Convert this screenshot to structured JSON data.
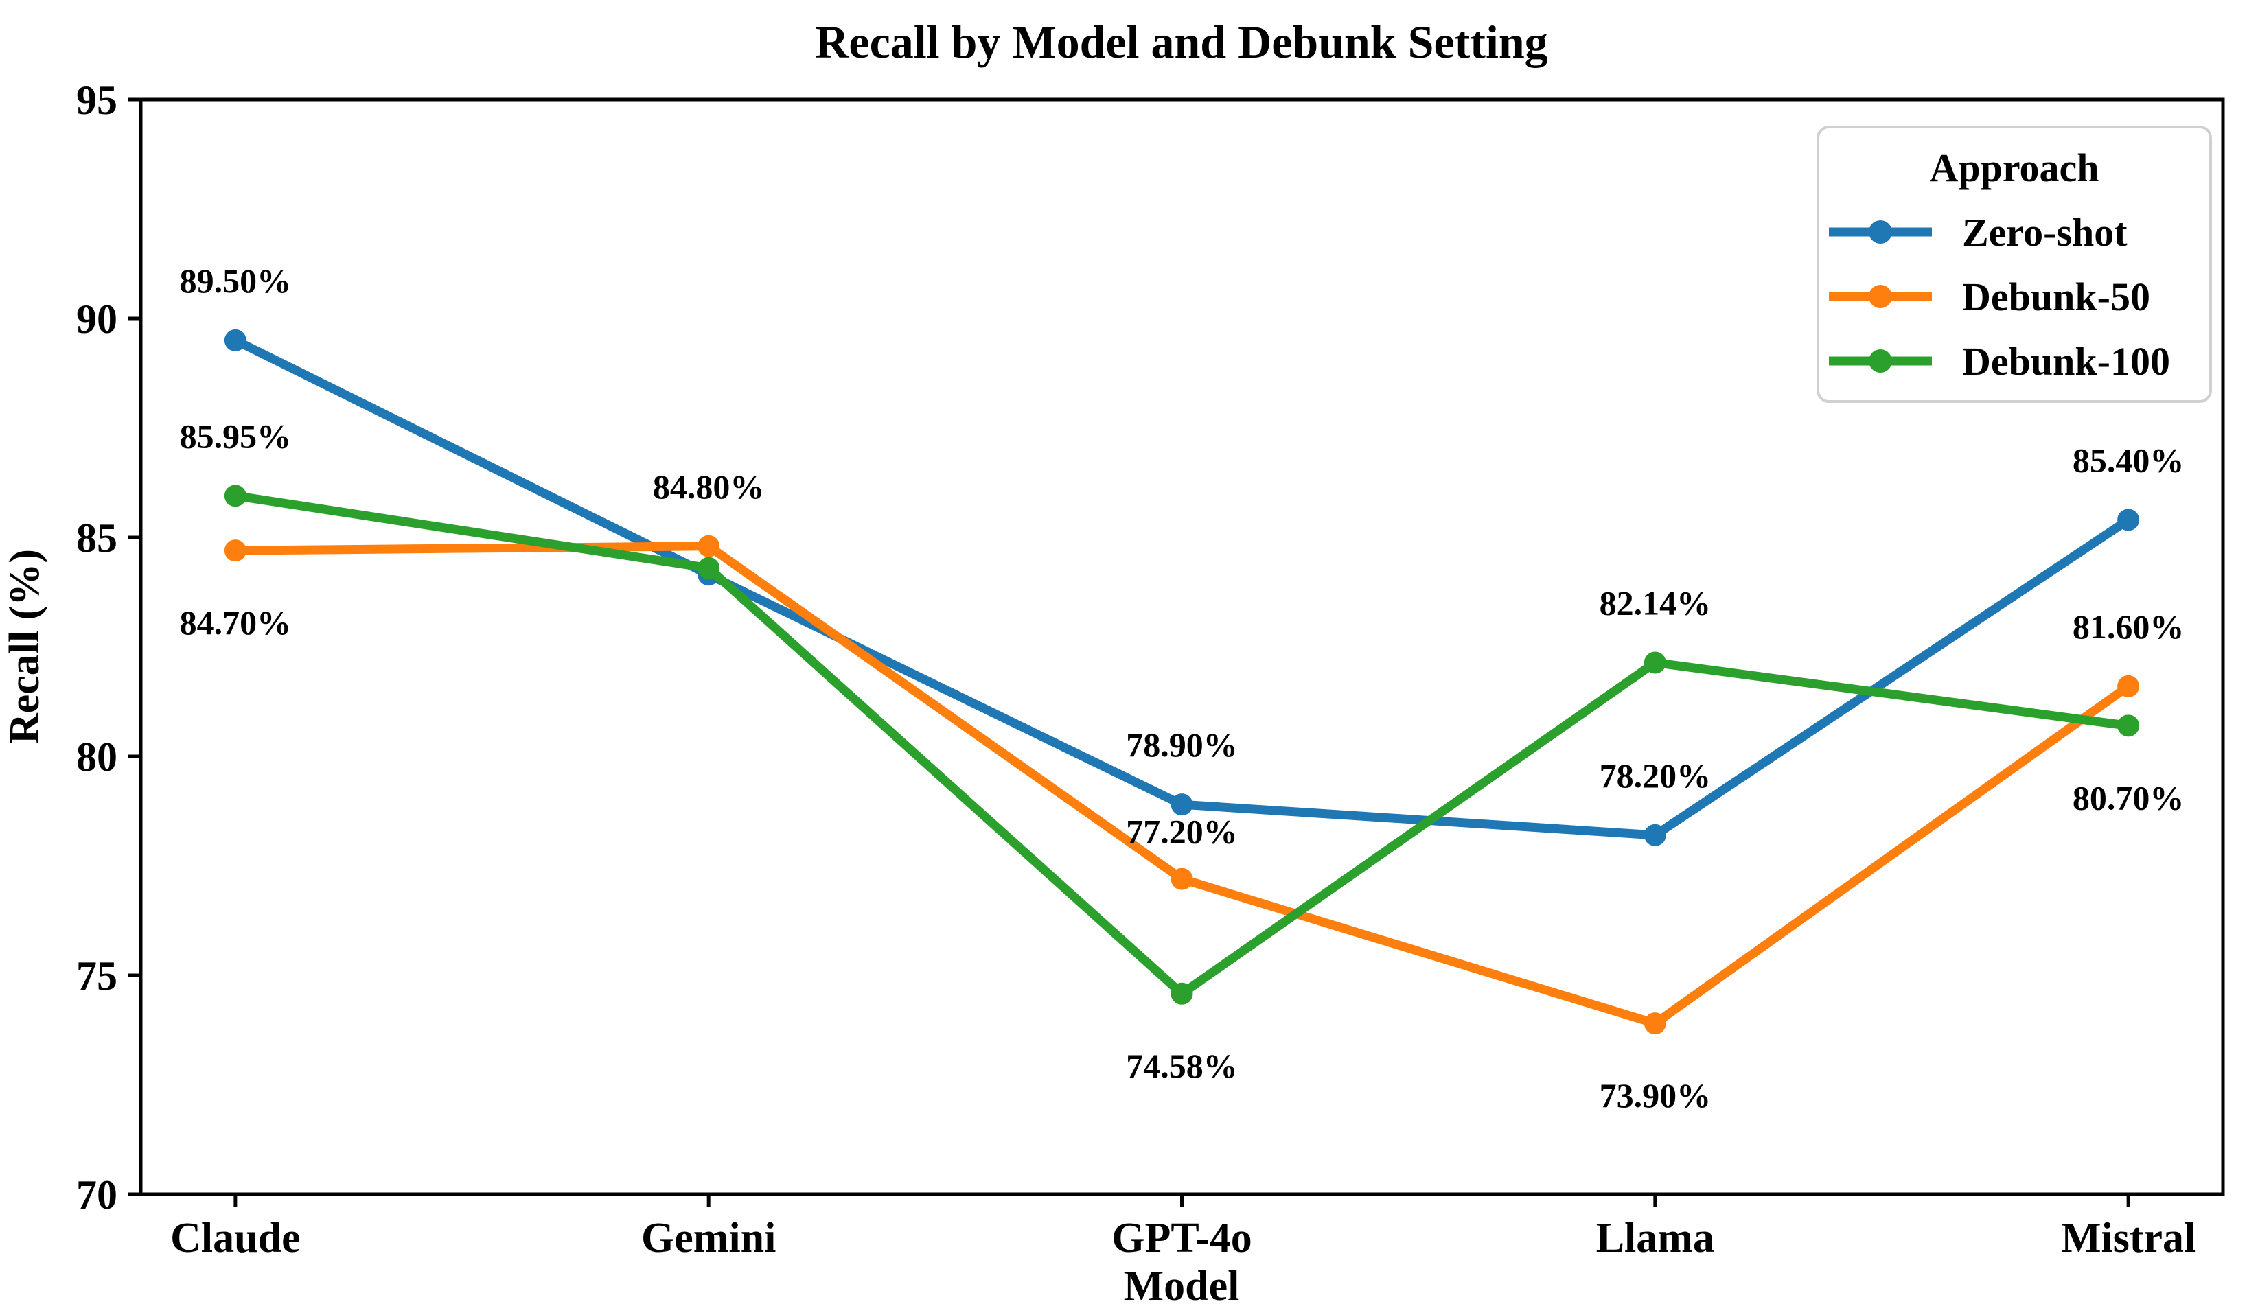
{
  "figure": {
    "title": "Recall by Model and Debunk Setting"
  },
  "chart_data": {
    "type": "line",
    "title": "Recall by Model and Debunk Setting",
    "xlabel": "Model",
    "ylabel": "Recall (%)",
    "categories": [
      "Claude",
      "Gemini",
      "GPT-4o",
      "Llama",
      "Mistral"
    ],
    "ylim": [
      70,
      95
    ],
    "yticks": [
      70,
      75,
      80,
      85,
      90,
      95
    ],
    "grid": false,
    "legend": {
      "title": "Approach",
      "position": "upper-right",
      "entries": [
        "Zero-shot",
        "Debunk-50",
        "Debunk-100"
      ]
    },
    "colors": {
      "zero_shot": "#1f77b4",
      "debunk_50": "#ff7f0e",
      "debunk_100": "#2ca02c",
      "axis": "#000000",
      "legend_border": "#d0d0d0",
      "background": "#ffffff"
    },
    "series": [
      {
        "name": "Zero-shot",
        "color": "#1f77b4",
        "values": [
          89.5,
          84.15,
          78.9,
          78.2,
          85.4
        ],
        "labels": [
          "89.50%",
          null,
          "78.90%",
          "78.20%",
          "85.40%"
        ],
        "label_placement": [
          "above",
          null,
          "above",
          "above",
          "above"
        ]
      },
      {
        "name": "Debunk-50",
        "color": "#ff7f0e",
        "values": [
          84.7,
          84.8,
          77.2,
          73.9,
          81.6
        ],
        "labels": [
          "84.70%",
          "84.80%",
          "77.20%",
          "73.90%",
          "81.60%"
        ],
        "label_placement": [
          "below",
          "above",
          "above_near",
          "below",
          "above"
        ]
      },
      {
        "name": "Debunk-100",
        "color": "#2ca02c",
        "values": [
          85.95,
          84.3,
          74.58,
          82.14,
          80.7
        ],
        "labels": [
          "85.95%",
          null,
          "74.58%",
          "82.14%",
          "80.70%"
        ],
        "label_placement": [
          "above",
          null,
          "below",
          "above",
          "below"
        ]
      }
    ]
  }
}
